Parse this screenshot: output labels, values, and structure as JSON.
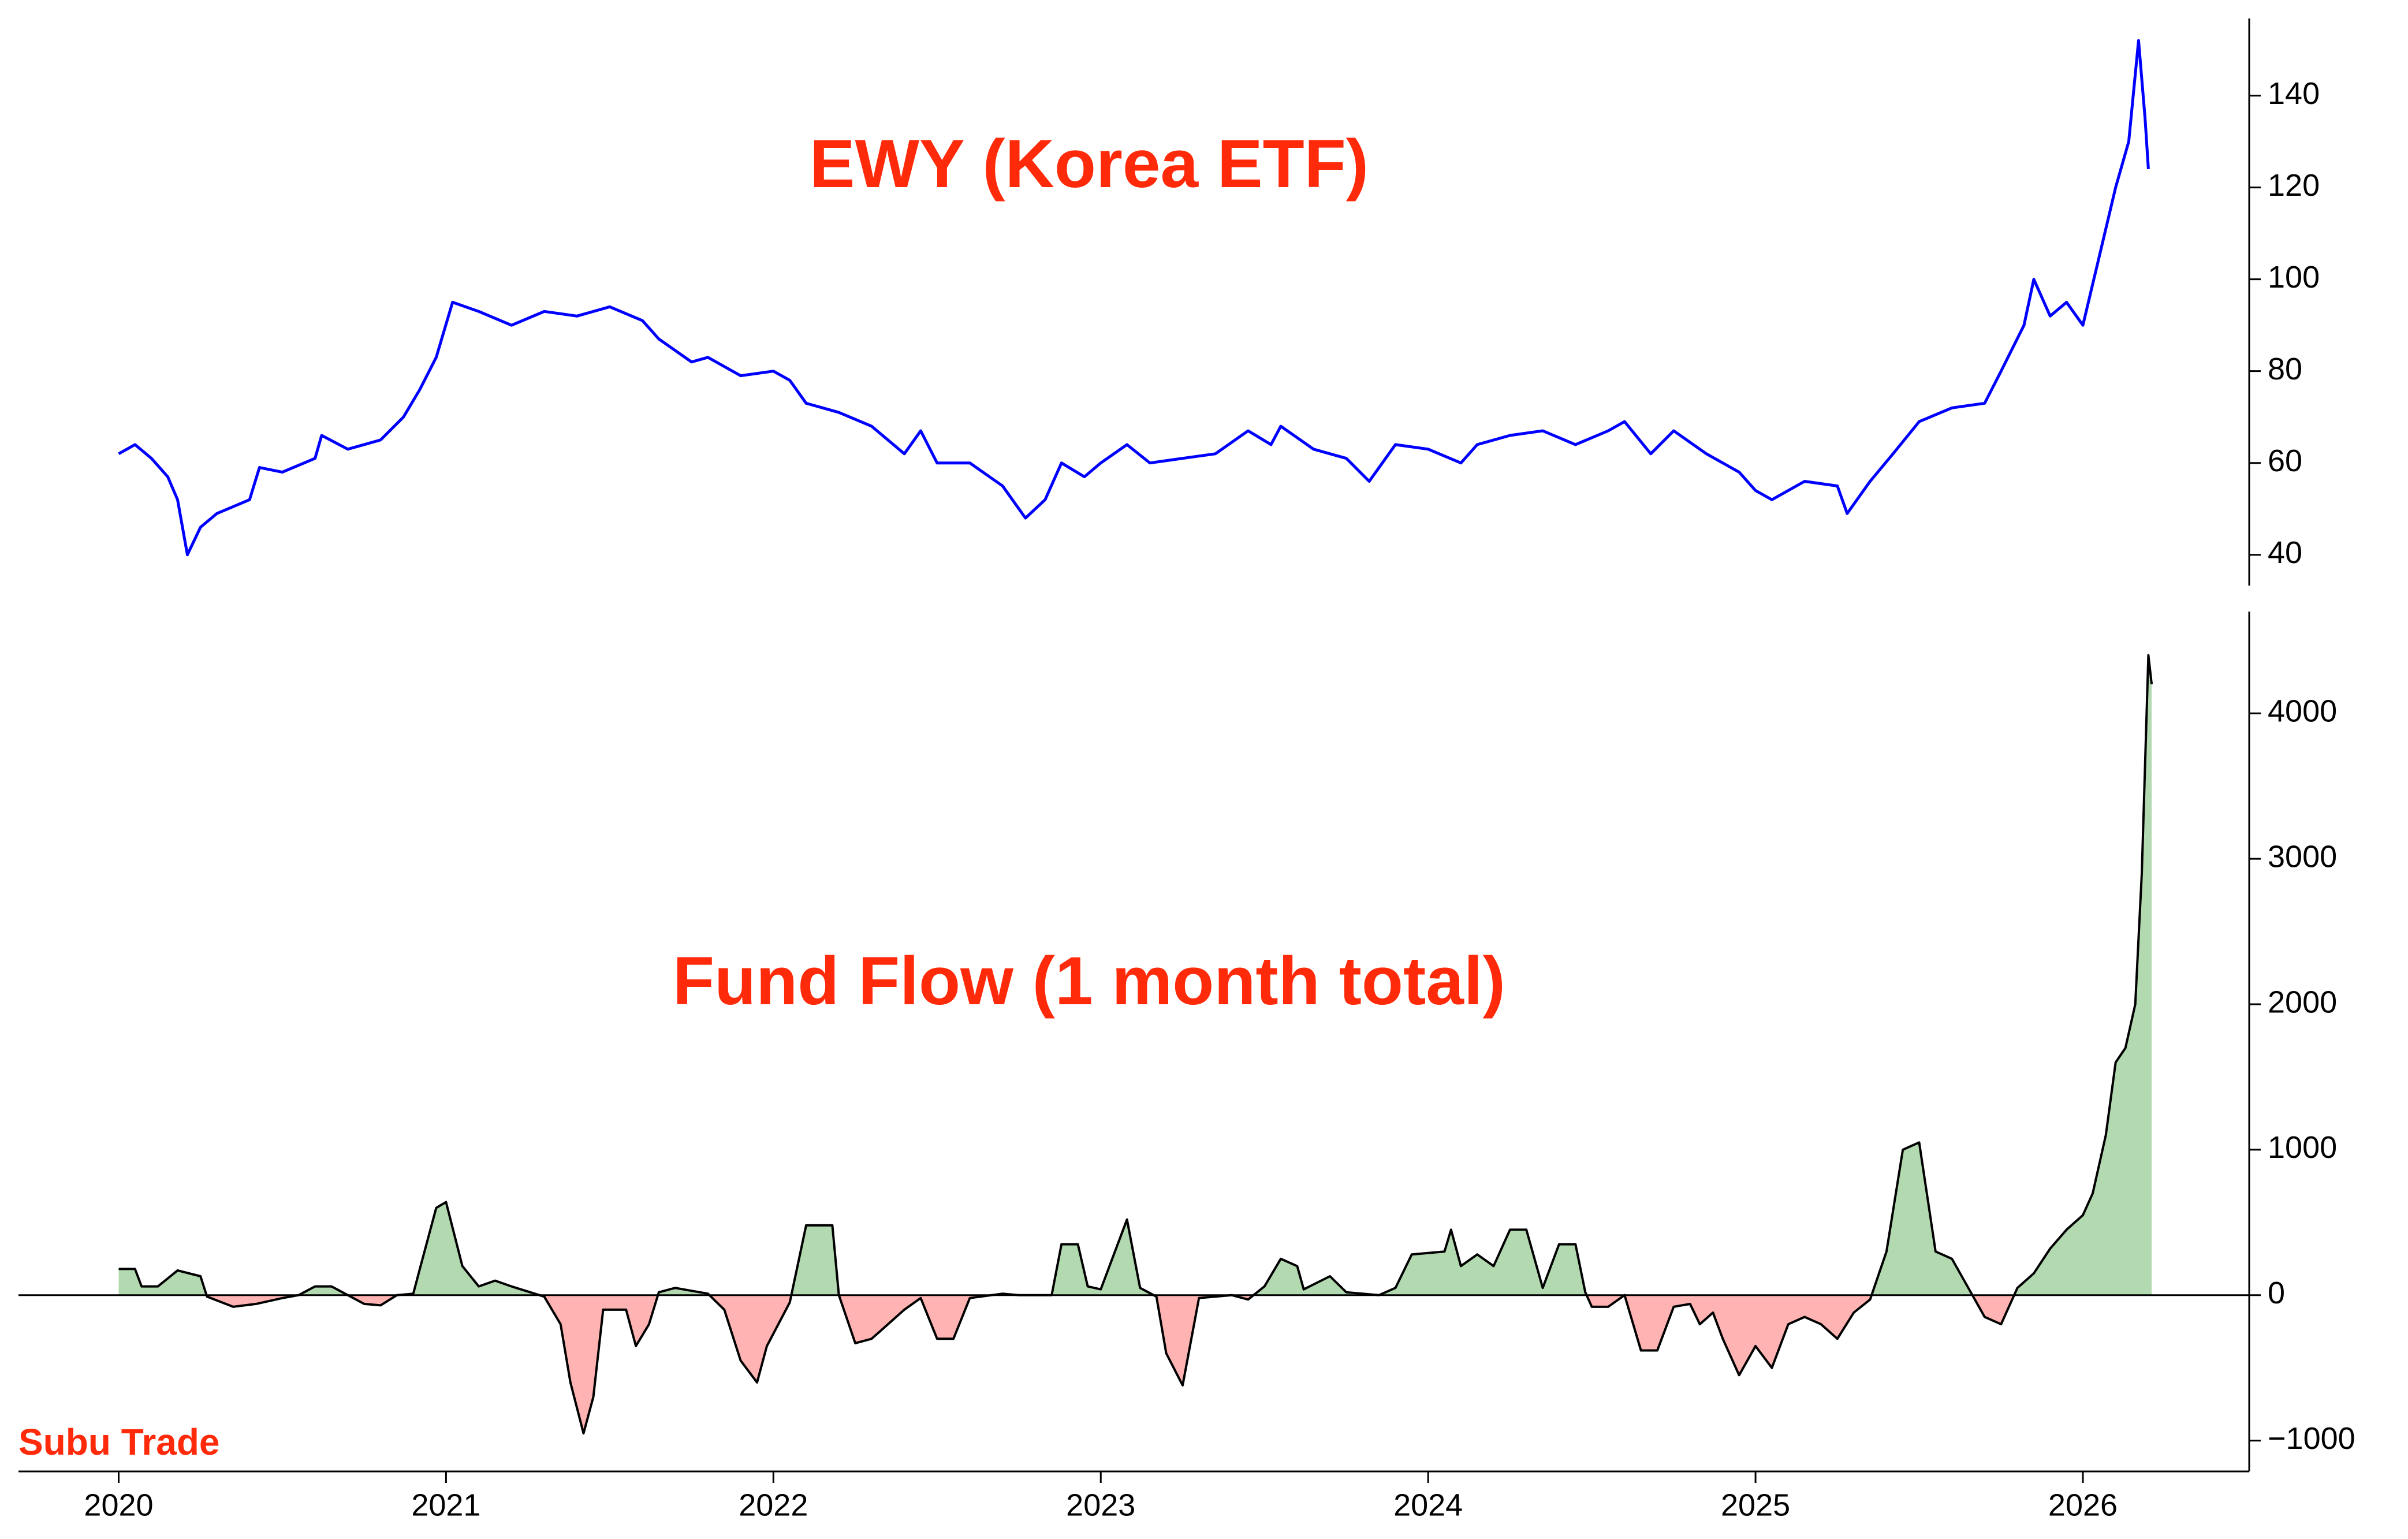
{
  "chart_data": [
    {
      "type": "line",
      "title": "EWY (Korea ETF)",
      "color": "#0000ff",
      "x": [
        2020.0,
        2020.05,
        2020.1,
        2020.15,
        2020.18,
        2020.21,
        2020.25,
        2020.3,
        2020.4,
        2020.43,
        2020.5,
        2020.6,
        2020.62,
        2020.7,
        2020.8,
        2020.87,
        2020.92,
        2020.97,
        2021.02,
        2021.1,
        2021.2,
        2021.3,
        2021.4,
        2021.5,
        2021.6,
        2021.65,
        2021.75,
        2021.8,
        2021.9,
        2022.0,
        2022.05,
        2022.1,
        2022.2,
        2022.3,
        2022.4,
        2022.45,
        2022.5,
        2022.6,
        2022.7,
        2022.77,
        2022.83,
        2022.88,
        2022.95,
        2023.0,
        2023.08,
        2023.15,
        2023.25,
        2023.35,
        2023.45,
        2023.52,
        2023.55,
        2023.65,
        2023.75,
        2023.82,
        2023.9,
        2024.0,
        2024.1,
        2024.15,
        2024.25,
        2024.35,
        2024.45,
        2024.55,
        2024.6,
        2024.68,
        2024.75,
        2024.85,
        2024.95,
        2025.0,
        2025.05,
        2025.15,
        2025.25,
        2025.28,
        2025.35,
        2025.42,
        2025.5,
        2025.6,
        2025.7,
        2025.75,
        2025.82,
        2025.85,
        2025.9,
        2025.95,
        2026.0,
        2026.05,
        2026.1,
        2026.14,
        2026.17,
        2026.19,
        2026.2
      ],
      "values": [
        62,
        64,
        61,
        57,
        52,
        40,
        46,
        49,
        52,
        59,
        58,
        61,
        66,
        63,
        65,
        70,
        76,
        83,
        95,
        93,
        90,
        93,
        92,
        94,
        91,
        87,
        82,
        83,
        79,
        80,
        78,
        73,
        71,
        68,
        62,
        67,
        60,
        60,
        55,
        48,
        52,
        60,
        57,
        60,
        64,
        60,
        61,
        62,
        67,
        64,
        68,
        63,
        61,
        56,
        64,
        63,
        60,
        64,
        66,
        67,
        64,
        67,
        69,
        62,
        67,
        62,
        58,
        54,
        52,
        56,
        55,
        49,
        56,
        62,
        69,
        72,
        73,
        80,
        90,
        100,
        92,
        95,
        90,
        105,
        120,
        130,
        152,
        135,
        124
      ],
      "xlim": [
        2019.694,
        2026.508
      ],
      "ylim": [
        33.3,
        156.8
      ],
      "yticks": [
        40,
        60,
        80,
        100,
        120,
        140
      ]
    },
    {
      "type": "area",
      "title": "Fund Flow (1 month total)",
      "color": "#000000",
      "positive_color": "#b3d9b1",
      "negative_color": "#ffb3b3",
      "x": [
        2020.0,
        2020.05,
        2020.07,
        2020.12,
        2020.18,
        2020.25,
        2020.27,
        2020.35,
        2020.42,
        2020.5,
        2020.55,
        2020.6,
        2020.65,
        2020.7,
        2020.75,
        2020.8,
        2020.85,
        2020.9,
        2020.92,
        2020.97,
        2021.0,
        2021.05,
        2021.1,
        2021.15,
        2021.2,
        2021.3,
        2021.35,
        2021.38,
        2021.42,
        2021.45,
        2021.48,
        2021.55,
        2021.58,
        2021.62,
        2021.65,
        2021.7,
        2021.8,
        2021.85,
        2021.9,
        2021.95,
        2021.98,
        2022.05,
        2022.1,
        2022.18,
        2022.2,
        2022.25,
        2022.3,
        2022.35,
        2022.4,
        2022.45,
        2022.5,
        2022.55,
        2022.6,
        2022.7,
        2022.75,
        2022.85,
        2022.88,
        2022.93,
        2022.96,
        2023.0,
        2023.08,
        2023.12,
        2023.17,
        2023.2,
        2023.25,
        2023.3,
        2023.4,
        2023.45,
        2023.5,
        2023.55,
        2023.6,
        2023.62,
        2023.7,
        2023.75,
        2023.85,
        2023.9,
        2023.95,
        2024.05,
        2024.07,
        2024.1,
        2024.15,
        2024.2,
        2024.25,
        2024.3,
        2024.35,
        2024.4,
        2024.45,
        2024.48,
        2024.5,
        2024.55,
        2024.6,
        2024.65,
        2024.7,
        2024.75,
        2024.8,
        2024.83,
        2024.87,
        2024.9,
        2024.95,
        2025.0,
        2025.05,
        2025.1,
        2025.15,
        2025.2,
        2025.25,
        2025.3,
        2025.35,
        2025.4,
        2025.45,
        2025.5,
        2025.55,
        2025.6,
        2025.65,
        2025.7,
        2025.75,
        2025.8,
        2025.85,
        2025.9,
        2025.95,
        2026.0,
        2026.03,
        2026.07,
        2026.1,
        2026.13,
        2026.16,
        2026.18,
        2026.2,
        2026.21
      ],
      "values": [
        180,
        180,
        60,
        60,
        170,
        130,
        -10,
        -80,
        -60,
        -20,
        0,
        60,
        60,
        0,
        -60,
        -70,
        0,
        10,
        180,
        600,
        640,
        200,
        60,
        100,
        60,
        -10,
        -200,
        -600,
        -950,
        -700,
        -100,
        -100,
        -350,
        -200,
        20,
        50,
        10,
        -100,
        -450,
        -600,
        -350,
        -50,
        480,
        480,
        0,
        -330,
        -300,
        -200,
        -100,
        -20,
        -300,
        -300,
        -20,
        10,
        0,
        0,
        350,
        350,
        60,
        40,
        520,
        50,
        -10,
        -400,
        -620,
        -20,
        0,
        -30,
        60,
        250,
        200,
        40,
        130,
        20,
        0,
        50,
        280,
        300,
        450,
        200,
        280,
        200,
        450,
        450,
        50,
        350,
        350,
        20,
        -80,
        -80,
        0,
        -380,
        -380,
        -80,
        -60,
        -200,
        -120,
        -300,
        -550,
        -350,
        -500,
        -200,
        -150,
        -200,
        -300,
        -120,
        -30,
        300,
        1000,
        1050,
        300,
        250,
        50,
        -150,
        -200,
        50,
        150,
        320,
        450,
        550,
        700,
        1100,
        1600,
        1700,
        2000,
        2900,
        4400,
        4200
      ],
      "xlim": [
        2019.694,
        2026.508
      ],
      "xticks": [
        2020,
        2021,
        2022,
        2023,
        2024,
        2025,
        2026
      ],
      "ylim": [
        -1212,
        4700
      ],
      "yticks": [
        {
          "value": -1000,
          "label": "−1000"
        },
        0,
        1000,
        2000,
        3000,
        4000
      ]
    }
  ],
  "watermark": "Subu Trade"
}
